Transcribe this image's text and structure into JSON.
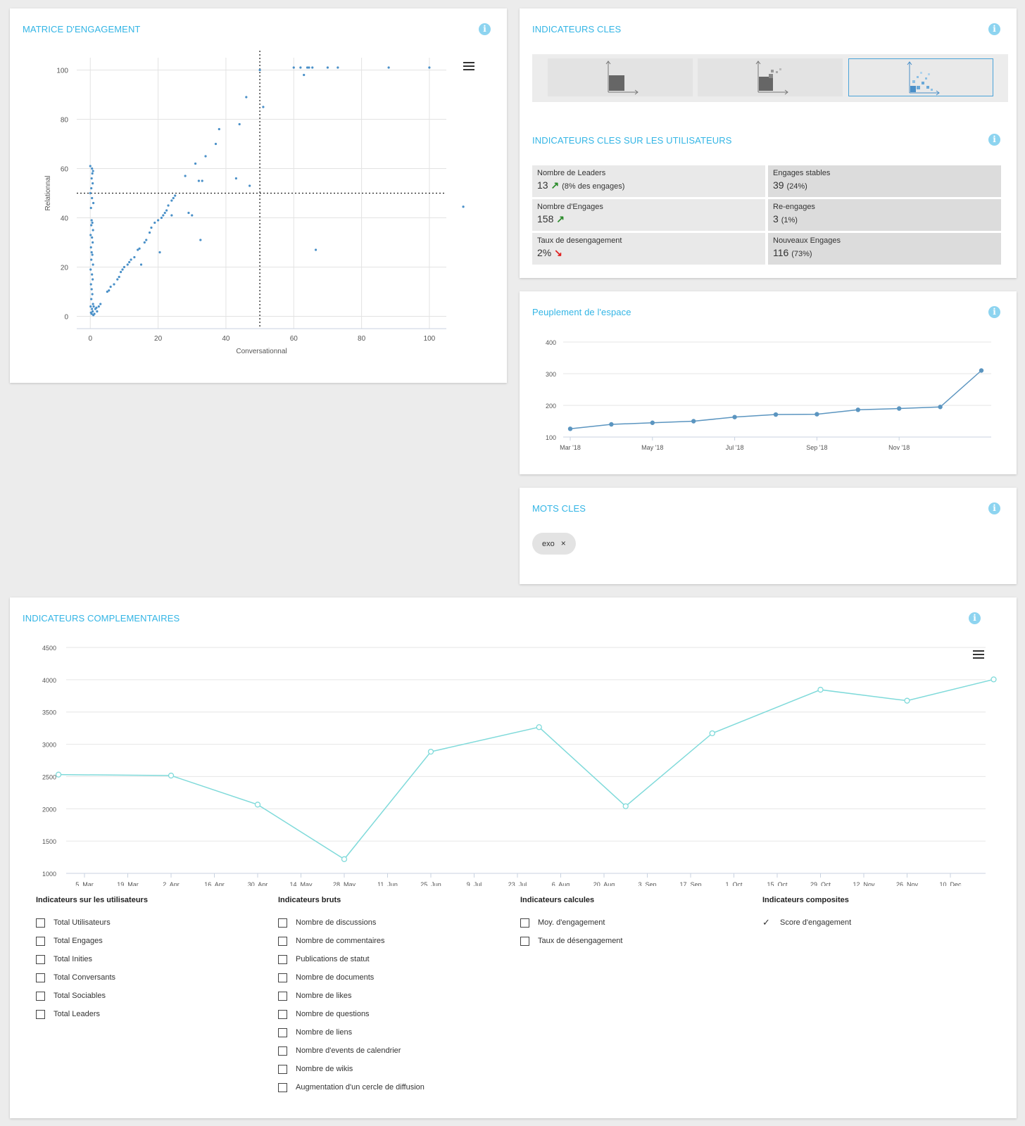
{
  "matrice": {
    "title": "MATRICE D'ENGAGEMENT",
    "xlabel": "Conversationnal",
    "ylabel": "Relationnal"
  },
  "indicateurs": {
    "title": "INDICATEURS CLES",
    "sub_title": "INDICATEURS CLES SUR LES UTILISATEURS",
    "kpis": [
      {
        "label": "Nombre de Leaders",
        "value": "13",
        "trend": "up",
        "note": "(8% des engages)"
      },
      {
        "label": "Engages stables",
        "value": "39",
        "trend": "",
        "note": "(24%)"
      },
      {
        "label": "Nombre d'Engages",
        "value": "158",
        "trend": "up",
        "note": ""
      },
      {
        "label": "Re-engages",
        "value": "3",
        "trend": "",
        "note": "(1%)"
      },
      {
        "label": "Taux de desengagement",
        "value": "2%",
        "trend": "down",
        "note": ""
      },
      {
        "label": "Nouveaux Engages",
        "value": "116",
        "trend": "",
        "note": "(73%)"
      }
    ]
  },
  "peuplement": {
    "title": "Peuplement de l'espace"
  },
  "mots_cles": {
    "title": "MOTS CLES",
    "chip": "exo",
    "chip_remove": "×"
  },
  "complementaires": {
    "title": "INDICATEURS COMPLEMENTAIRES",
    "legend": [
      {
        "heading": "Indicateurs sur les utilisateurs",
        "items": [
          {
            "label": "Total Utilisateurs",
            "checked": false
          },
          {
            "label": "Total Engages",
            "checked": false
          },
          {
            "label": "Total Inities",
            "checked": false
          },
          {
            "label": "Total Conversants",
            "checked": false
          },
          {
            "label": "Total Sociables",
            "checked": false
          },
          {
            "label": "Total Leaders",
            "checked": false
          }
        ]
      },
      {
        "heading": "Indicateurs bruts",
        "items": [
          {
            "label": "Nombre de discussions",
            "checked": false
          },
          {
            "label": "Nombre de commentaires",
            "checked": false
          },
          {
            "label": "Publications de statut",
            "checked": false
          },
          {
            "label": "Nombre de documents",
            "checked": false
          },
          {
            "label": "Nombre de likes",
            "checked": false
          },
          {
            "label": "Nombre de questions",
            "checked": false
          },
          {
            "label": "Nombre de liens",
            "checked": false
          },
          {
            "label": "Nombre d'events de calendrier",
            "checked": false
          },
          {
            "label": "Nombre de wikis",
            "checked": false
          },
          {
            "label": "Augmentation d'un cercle de diffusion",
            "checked": false
          }
        ]
      },
      {
        "heading": "Indicateurs calcules",
        "items": [
          {
            "label": "Moy. d'engagement",
            "checked": false
          },
          {
            "label": "Taux de désengagement",
            "checked": false
          }
        ]
      },
      {
        "heading": "Indicateurs composites",
        "items": [
          {
            "label": "Score d'engagement",
            "checked": true
          }
        ]
      }
    ]
  },
  "colors": {
    "accent": "#33b5e5",
    "scatter": "#4a90c8",
    "peuplement_line": "#5b95c0",
    "complementaire_line": "#7fdada"
  },
  "chart_data": [
    {
      "type": "scatter",
      "title": "",
      "xlabel": "Conversationnal",
      "ylabel": "Relationnal",
      "xlim": [
        -4,
        105
      ],
      "ylim": [
        -5,
        105
      ],
      "xticks": [
        0,
        20,
        40,
        60,
        80,
        100
      ],
      "yticks": [
        0,
        20,
        40,
        60,
        80,
        100
      ],
      "thresholds": {
        "x": 50,
        "y": 50
      },
      "points": [
        [
          0,
          61
        ],
        [
          0.5,
          60
        ],
        [
          0.8,
          59
        ],
        [
          0.6,
          58
        ],
        [
          0.4,
          56
        ],
        [
          0.7,
          54
        ],
        [
          0.3,
          52
        ],
        [
          0,
          50
        ],
        [
          0.5,
          48
        ],
        [
          0.9,
          46
        ],
        [
          0.2,
          44
        ],
        [
          0.4,
          39
        ],
        [
          0.6,
          38
        ],
        [
          0.3,
          37
        ],
        [
          0.8,
          35
        ],
        [
          0.1,
          33
        ],
        [
          0.5,
          32
        ],
        [
          0.7,
          30
        ],
        [
          0.2,
          28
        ],
        [
          0.4,
          26
        ],
        [
          0.6,
          25
        ],
        [
          0.3,
          23
        ],
        [
          0.8,
          21
        ],
        [
          0.1,
          19
        ],
        [
          0.5,
          17
        ],
        [
          0.7,
          15
        ],
        [
          0.2,
          13
        ],
        [
          0.4,
          11
        ],
        [
          0.6,
          9
        ],
        [
          0.3,
          7
        ],
        [
          0.8,
          5
        ],
        [
          0.1,
          4
        ],
        [
          0.5,
          3
        ],
        [
          0.7,
          2
        ],
        [
          0.2,
          1.5
        ],
        [
          0.4,
          1
        ],
        [
          1,
          4
        ],
        [
          1.5,
          3
        ],
        [
          2,
          2
        ],
        [
          1.2,
          1
        ],
        [
          2.5,
          4
        ],
        [
          3,
          5
        ],
        [
          0.9,
          0.5
        ],
        [
          1.8,
          3.5
        ],
        [
          5,
          10
        ],
        [
          5.5,
          10.5
        ],
        [
          6,
          12
        ],
        [
          7,
          13
        ],
        [
          8,
          15
        ],
        [
          8.5,
          16
        ],
        [
          9,
          18
        ],
        [
          9.5,
          19
        ],
        [
          10,
          20
        ],
        [
          11,
          21
        ],
        [
          11.5,
          22
        ],
        [
          12,
          23
        ],
        [
          13,
          24
        ],
        [
          14,
          27
        ],
        [
          14.5,
          27.5
        ],
        [
          15,
          21
        ],
        [
          16,
          30
        ],
        [
          16.5,
          31
        ],
        [
          17.5,
          34
        ],
        [
          18,
          36
        ],
        [
          19,
          38
        ],
        [
          20,
          39
        ],
        [
          20.5,
          26
        ],
        [
          21,
          40
        ],
        [
          21.5,
          41
        ],
        [
          22,
          42
        ],
        [
          22.5,
          43
        ],
        [
          23,
          45
        ],
        [
          24,
          47
        ],
        [
          24.5,
          48
        ],
        [
          24,
          41
        ],
        [
          25,
          49
        ],
        [
          28,
          57
        ],
        [
          29,
          42
        ],
        [
          30,
          41
        ],
        [
          31,
          62
        ],
        [
          32,
          55
        ],
        [
          32.5,
          31
        ],
        [
          33,
          55
        ],
        [
          34,
          65
        ],
        [
          37,
          70
        ],
        [
          38,
          76
        ],
        [
          43,
          56
        ],
        [
          44,
          78
        ],
        [
          46,
          89
        ],
        [
          47,
          53
        ],
        [
          50,
          100
        ],
        [
          51,
          85
        ],
        [
          60,
          101
        ],
        [
          62,
          101
        ],
        [
          63,
          98
        ],
        [
          64,
          101
        ],
        [
          64.5,
          101
        ],
        [
          65.5,
          101
        ],
        [
          66.5,
          27
        ],
        [
          70,
          101
        ],
        [
          73,
          101
        ],
        [
          88,
          101
        ],
        [
          100,
          101
        ],
        [
          110,
          44.5
        ]
      ]
    },
    {
      "type": "line",
      "title": "Peuplement de l'espace",
      "x": [
        "Mar '18",
        "Apr '18",
        "May '18",
        "Jun '18",
        "Jul '18",
        "Aug '18",
        "Sep '18",
        "Oct '18",
        "Nov '18",
        "Dec '18",
        "Jan '19"
      ],
      "xtick_labels": [
        "Mar '18",
        "May '18",
        "Jul '18",
        "Sep '18",
        "Nov '18"
      ],
      "values": [
        126,
        140,
        145,
        150,
        163,
        171,
        172,
        186,
        190,
        195,
        310
      ],
      "ylim": [
        100,
        400
      ],
      "yticks": [
        100,
        200,
        300,
        400
      ]
    },
    {
      "type": "line",
      "title": "INDICATEURS COMPLEMENTAIRES",
      "xtick_labels": [
        "5. Mar",
        "19. Mar",
        "2. Apr",
        "16. Apr",
        "30. Apr",
        "14. May",
        "28. May",
        "11. Jun",
        "25. Jun",
        "9. Jul",
        "23. Jul",
        "6. Aug",
        "20. Aug",
        "3. Sep",
        "17. Sep",
        "1. Oct",
        "15. Oct",
        "29. Oct",
        "12. Nov",
        "26. Nov",
        "10. Dec"
      ],
      "x": [
        "26. Feb",
        "2. Apr",
        "30. Apr",
        "28. May",
        "25. Jun",
        "30. Jul",
        "27. Aug",
        "24. Sep",
        "29. Oct",
        "26. Nov",
        "24. Dec"
      ],
      "series": [
        {
          "name": "Score d'engagement",
          "values": [
            2530,
            2515,
            2065,
            1220,
            2885,
            3265,
            2040,
            3170,
            3845,
            3675,
            4005
          ]
        }
      ],
      "ylim": [
        1000,
        4500
      ],
      "yticks": [
        1000,
        1500,
        2000,
        2500,
        3000,
        3500,
        4000,
        4500
      ]
    }
  ]
}
